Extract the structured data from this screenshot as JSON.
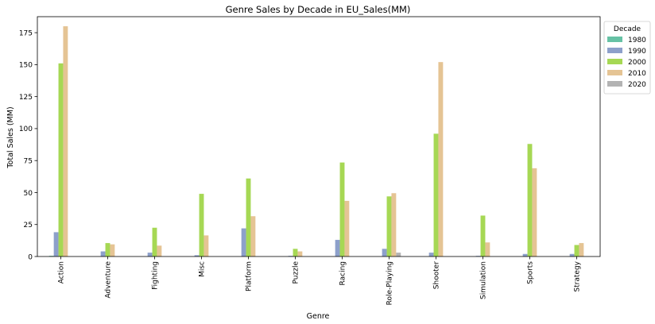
{
  "chart_data": {
    "type": "bar",
    "title": "Genre Sales by Decade in EU_Sales(MM)",
    "xlabel": "Genre",
    "ylabel": "Total Sales (MM)",
    "ylim": [
      0,
      187.5
    ],
    "yticks": [
      0,
      25,
      50,
      75,
      100,
      125,
      150,
      175
    ],
    "grid": false,
    "legend": {
      "title": "Decade",
      "placement": "top-right-outside"
    },
    "categories": [
      "Action",
      "Adventure",
      "Fighting",
      "Misc",
      "Platform",
      "Puzzle",
      "Racing",
      "Role-Playing",
      "Shooter",
      "Simulation",
      "Sports",
      "Strategy"
    ],
    "series": [
      {
        "name": "1980",
        "color": "#66c2a5",
        "values": [
          0.5,
          0.0,
          0.0,
          0.0,
          0.0,
          0.0,
          0.0,
          0.0,
          0.0,
          0.0,
          0.0,
          0.0
        ]
      },
      {
        "name": "1990",
        "color": "#8da0cb",
        "values": [
          19.0,
          4.0,
          3.0,
          1.0,
          22.0,
          0.5,
          13.0,
          6.0,
          3.0,
          0.5,
          2.0,
          2.0
        ]
      },
      {
        "name": "2000",
        "color": "#a6d854",
        "values": [
          151.0,
          10.5,
          22.5,
          49.0,
          61.0,
          6.0,
          73.5,
          47.0,
          96.0,
          32.0,
          88.0,
          9.0
        ]
      },
      {
        "name": "2010",
        "color": "#e5c494",
        "values": [
          180.0,
          9.5,
          8.5,
          16.5,
          31.5,
          4.0,
          43.5,
          49.5,
          152.0,
          11.0,
          69.0,
          10.5
        ]
      },
      {
        "name": "2020",
        "color": "#b3b3b3",
        "values": [
          0.0,
          0.0,
          0.0,
          0.0,
          0.0,
          0.0,
          0.0,
          3.0,
          0.0,
          0.0,
          0.0,
          0.0
        ]
      }
    ]
  }
}
